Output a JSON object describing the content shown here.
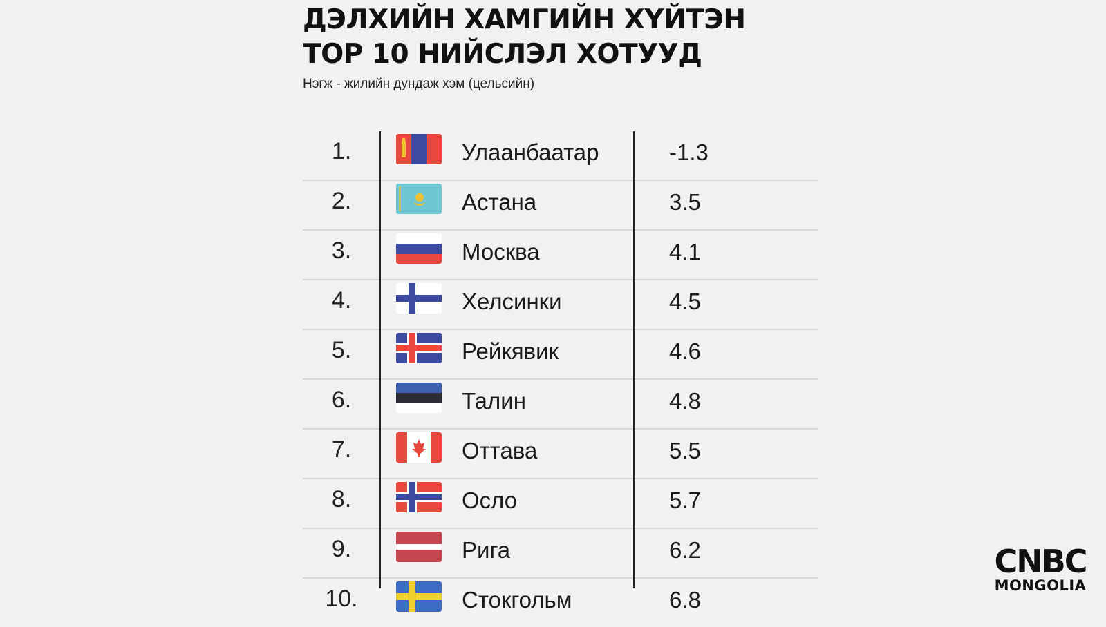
{
  "title_line1": "ДЭЛХИЙН ХАМГИЙН ХҮЙТЭН",
  "title_line2": "ТОР 10 НИЙСЛЭЛ ХОТУУД",
  "subtitle": "Нэгж - жилийн дундаж хэм (цельсийн)",
  "chart_data": {
    "type": "table",
    "title": "ДЭЛХИЙН ХАМГИЙН ХҮЙТЭН ТОР 10 НИЙСЛЭЛ ХОТУУД",
    "subtitle": "Нэгж - жилийн дундаж хэм (цельсийн)",
    "rows": [
      {
        "rank": "1.",
        "city": "Улаанбаатар",
        "value": "-1.3",
        "flag": "mongolia-flag"
      },
      {
        "rank": "2.",
        "city": "Астана",
        "value": "3.5",
        "flag": "kazakhstan-flag"
      },
      {
        "rank": "3.",
        "city": "Москва",
        "value": "4.1",
        "flag": "russia-flag"
      },
      {
        "rank": "4.",
        "city": "Хелсинки",
        "value": "4.5",
        "flag": "finland-flag"
      },
      {
        "rank": "5.",
        "city": "Рейкявик",
        "value": "4.6",
        "flag": "iceland-flag"
      },
      {
        "rank": "6.",
        "city": "Талин",
        "value": "4.8",
        "flag": "estonia-flag"
      },
      {
        "rank": "7.",
        "city": "Оттава",
        "value": "5.5",
        "flag": "canada-flag"
      },
      {
        "rank": "8.",
        "city": "Осло",
        "value": "5.7",
        "flag": "norway-flag"
      },
      {
        "rank": "9.",
        "city": "Рига",
        "value": "6.2",
        "flag": "latvia-flag"
      },
      {
        "rank": "10.",
        "city": "Стокгольм",
        "value": "6.8",
        "flag": "sweden-flag"
      }
    ]
  },
  "logo": {
    "top": "CNBC",
    "bottom": "MONGOLIA"
  }
}
